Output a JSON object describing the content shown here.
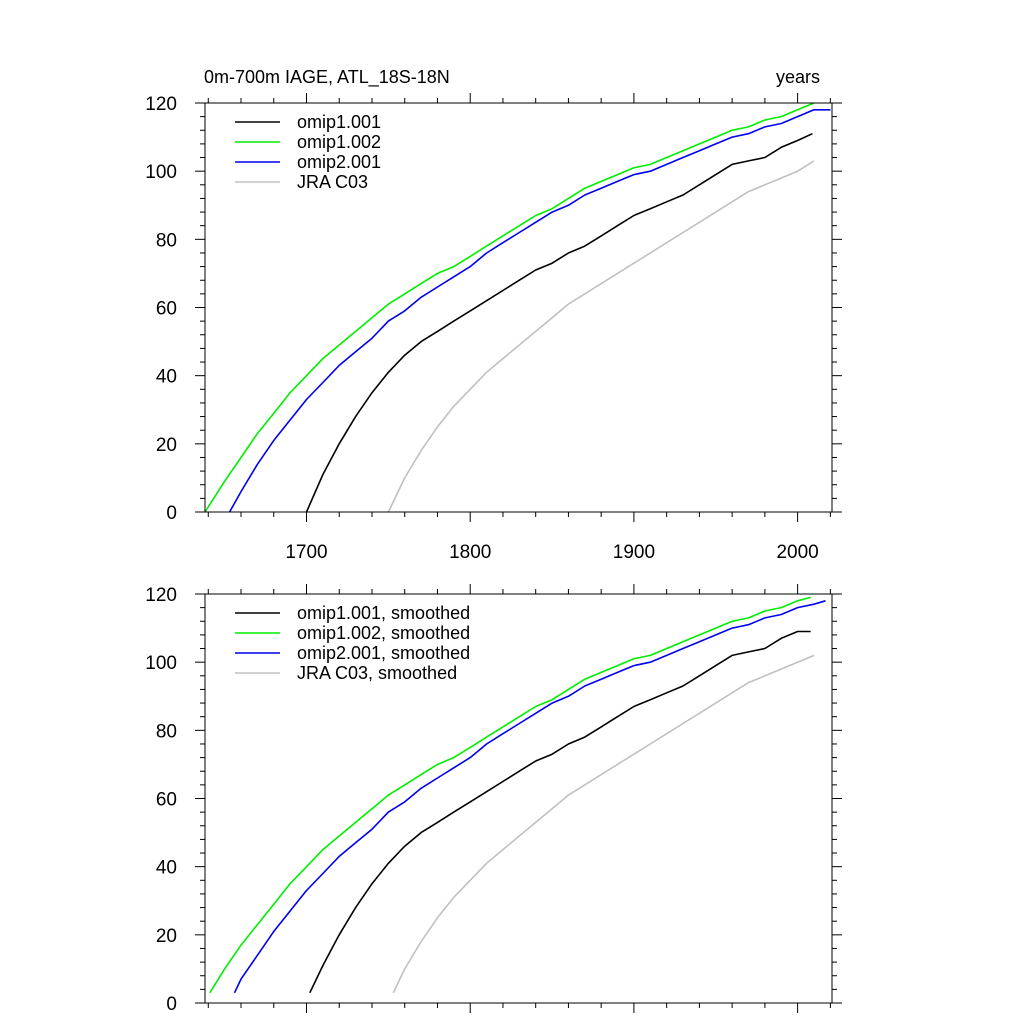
{
  "chart_data": [
    {
      "type": "line",
      "title": "0m-700m IAGE, ATL_18S-18N",
      "right_title": "years",
      "xlim": [
        1638,
        2021
      ],
      "ylim": [
        0,
        120
      ],
      "xticks": [
        1700,
        1800,
        1900,
        2000
      ],
      "yticks": [
        0,
        20,
        40,
        60,
        80,
        100,
        120
      ],
      "show_xtick_labels": true,
      "legend_position": "top-left",
      "series": [
        {
          "name": "omip1.001",
          "color": "#000000",
          "x": [
            1700,
            1710,
            1720,
            1730,
            1740,
            1750,
            1760,
            1770,
            1780,
            1790,
            1800,
            1810,
            1820,
            1830,
            1840,
            1850,
            1860,
            1870,
            1880,
            1890,
            1900,
            1910,
            1920,
            1930,
            1940,
            1950,
            1960,
            1970,
            1980,
            1990,
            2000,
            2009
          ],
          "y": [
            0,
            11,
            20,
            28,
            35,
            41,
            46,
            50,
            53,
            56,
            59,
            62,
            65,
            68,
            71,
            73,
            76,
            78,
            81,
            84,
            87,
            89,
            91,
            93,
            96,
            99,
            102,
            103,
            104,
            107,
            109,
            111
          ]
        },
        {
          "name": "omip1.002",
          "color": "#00ee00",
          "x": [
            1638,
            1650,
            1660,
            1670,
            1680,
            1690,
            1700,
            1710,
            1720,
            1730,
            1740,
            1750,
            1760,
            1770,
            1780,
            1790,
            1800,
            1810,
            1820,
            1830,
            1840,
            1850,
            1860,
            1870,
            1880,
            1890,
            1900,
            1910,
            1920,
            1930,
            1940,
            1950,
            1960,
            1970,
            1980,
            1990,
            2000,
            2010
          ],
          "y": [
            0,
            9,
            16,
            23,
            29,
            35,
            40,
            45,
            49,
            53,
            57,
            61,
            64,
            67,
            70,
            72,
            75,
            78,
            81,
            84,
            87,
            89,
            92,
            95,
            97,
            99,
            101,
            102,
            104,
            106,
            108,
            110,
            112,
            113,
            115,
            116,
            118,
            120
          ]
        },
        {
          "name": "omip2.001",
          "color": "#0000ee",
          "x": [
            1653,
            1660,
            1670,
            1680,
            1690,
            1700,
            1710,
            1720,
            1730,
            1740,
            1750,
            1760,
            1770,
            1780,
            1790,
            1800,
            1810,
            1820,
            1830,
            1840,
            1850,
            1860,
            1870,
            1880,
            1890,
            1900,
            1910,
            1920,
            1930,
            1940,
            1950,
            1960,
            1970,
            1980,
            1990,
            2000,
            2010,
            2020
          ],
          "y": [
            0,
            6,
            14,
            21,
            27,
            33,
            38,
            43,
            47,
            51,
            56,
            59,
            63,
            66,
            69,
            72,
            76,
            79,
            82,
            85,
            88,
            90,
            93,
            95,
            97,
            99,
            100,
            102,
            104,
            106,
            108,
            110,
            111,
            113,
            114,
            116,
            118,
            118
          ]
        },
        {
          "name": "JRA C03",
          "color": "#c0c0c0",
          "x": [
            1750,
            1760,
            1770,
            1780,
            1790,
            1800,
            1810,
            1820,
            1830,
            1840,
            1850,
            1860,
            1870,
            1880,
            1890,
            1900,
            1910,
            1920,
            1930,
            1940,
            1950,
            1960,
            1970,
            1980,
            1990,
            2000,
            2010
          ],
          "y": [
            0,
            10,
            18,
            25,
            31,
            36,
            41,
            45,
            49,
            53,
            57,
            61,
            64,
            67,
            70,
            73,
            76,
            79,
            82,
            85,
            88,
            91,
            94,
            96,
            98,
            100,
            103
          ]
        }
      ]
    },
    {
      "type": "line",
      "title": "",
      "xlim": [
        1638,
        2021
      ],
      "ylim": [
        0,
        120
      ],
      "xticks": [
        1700,
        1800,
        1900,
        2000
      ],
      "yticks": [
        0,
        20,
        40,
        60,
        80,
        100,
        120
      ],
      "show_xtick_labels": false,
      "legend_position": "top-left",
      "series": [
        {
          "name": "omip1.001, smoothed",
          "color": "#000000",
          "x": [
            1702,
            1710,
            1720,
            1730,
            1740,
            1750,
            1760,
            1770,
            1780,
            1790,
            1800,
            1810,
            1820,
            1830,
            1840,
            1850,
            1860,
            1870,
            1880,
            1890,
            1900,
            1910,
            1920,
            1930,
            1940,
            1950,
            1960,
            1970,
            1980,
            1990,
            2000,
            2008
          ],
          "y": [
            3,
            11,
            20,
            28,
            35,
            41,
            46,
            50,
            53,
            56,
            59,
            62,
            65,
            68,
            71,
            73,
            76,
            78,
            81,
            84,
            87,
            89,
            91,
            93,
            96,
            99,
            102,
            103,
            104,
            107,
            109,
            109
          ]
        },
        {
          "name": "omip1.002, smoothed",
          "color": "#00ee00",
          "x": [
            1641,
            1650,
            1660,
            1670,
            1680,
            1690,
            1700,
            1710,
            1720,
            1730,
            1740,
            1750,
            1760,
            1770,
            1780,
            1790,
            1800,
            1810,
            1820,
            1830,
            1840,
            1850,
            1860,
            1870,
            1880,
            1890,
            1900,
            1910,
            1920,
            1930,
            1940,
            1950,
            1960,
            1970,
            1980,
            1990,
            2000,
            2008
          ],
          "y": [
            3,
            10,
            17,
            23,
            29,
            35,
            40,
            45,
            49,
            53,
            57,
            61,
            64,
            67,
            70,
            72,
            75,
            78,
            81,
            84,
            87,
            89,
            92,
            95,
            97,
            99,
            101,
            102,
            104,
            106,
            108,
            110,
            112,
            113,
            115,
            116,
            118,
            119
          ]
        },
        {
          "name": "omip2.001, smoothed",
          "color": "#0000ee",
          "x": [
            1656,
            1660,
            1670,
            1680,
            1690,
            1700,
            1710,
            1720,
            1730,
            1740,
            1750,
            1760,
            1770,
            1780,
            1790,
            1800,
            1810,
            1820,
            1830,
            1840,
            1850,
            1860,
            1870,
            1880,
            1890,
            1900,
            1910,
            1920,
            1930,
            1940,
            1950,
            1960,
            1970,
            1980,
            1990,
            2000,
            2010,
            2017
          ],
          "y": [
            3,
            7,
            14,
            21,
            27,
            33,
            38,
            43,
            47,
            51,
            56,
            59,
            63,
            66,
            69,
            72,
            76,
            79,
            82,
            85,
            88,
            90,
            93,
            95,
            97,
            99,
            100,
            102,
            104,
            106,
            108,
            110,
            111,
            113,
            114,
            116,
            117,
            118
          ]
        },
        {
          "name": "JRA C03, smoothed",
          "color": "#c0c0c0",
          "x": [
            1753,
            1760,
            1770,
            1780,
            1790,
            1800,
            1810,
            1820,
            1830,
            1840,
            1850,
            1860,
            1870,
            1880,
            1890,
            1900,
            1910,
            1920,
            1930,
            1940,
            1950,
            1960,
            1970,
            1980,
            1990,
            2000,
            2010
          ],
          "y": [
            3,
            10,
            18,
            25,
            31,
            36,
            41,
            45,
            49,
            53,
            57,
            61,
            64,
            67,
            70,
            73,
            76,
            79,
            82,
            85,
            88,
            91,
            94,
            96,
            98,
            100,
            102
          ]
        }
      ]
    }
  ]
}
